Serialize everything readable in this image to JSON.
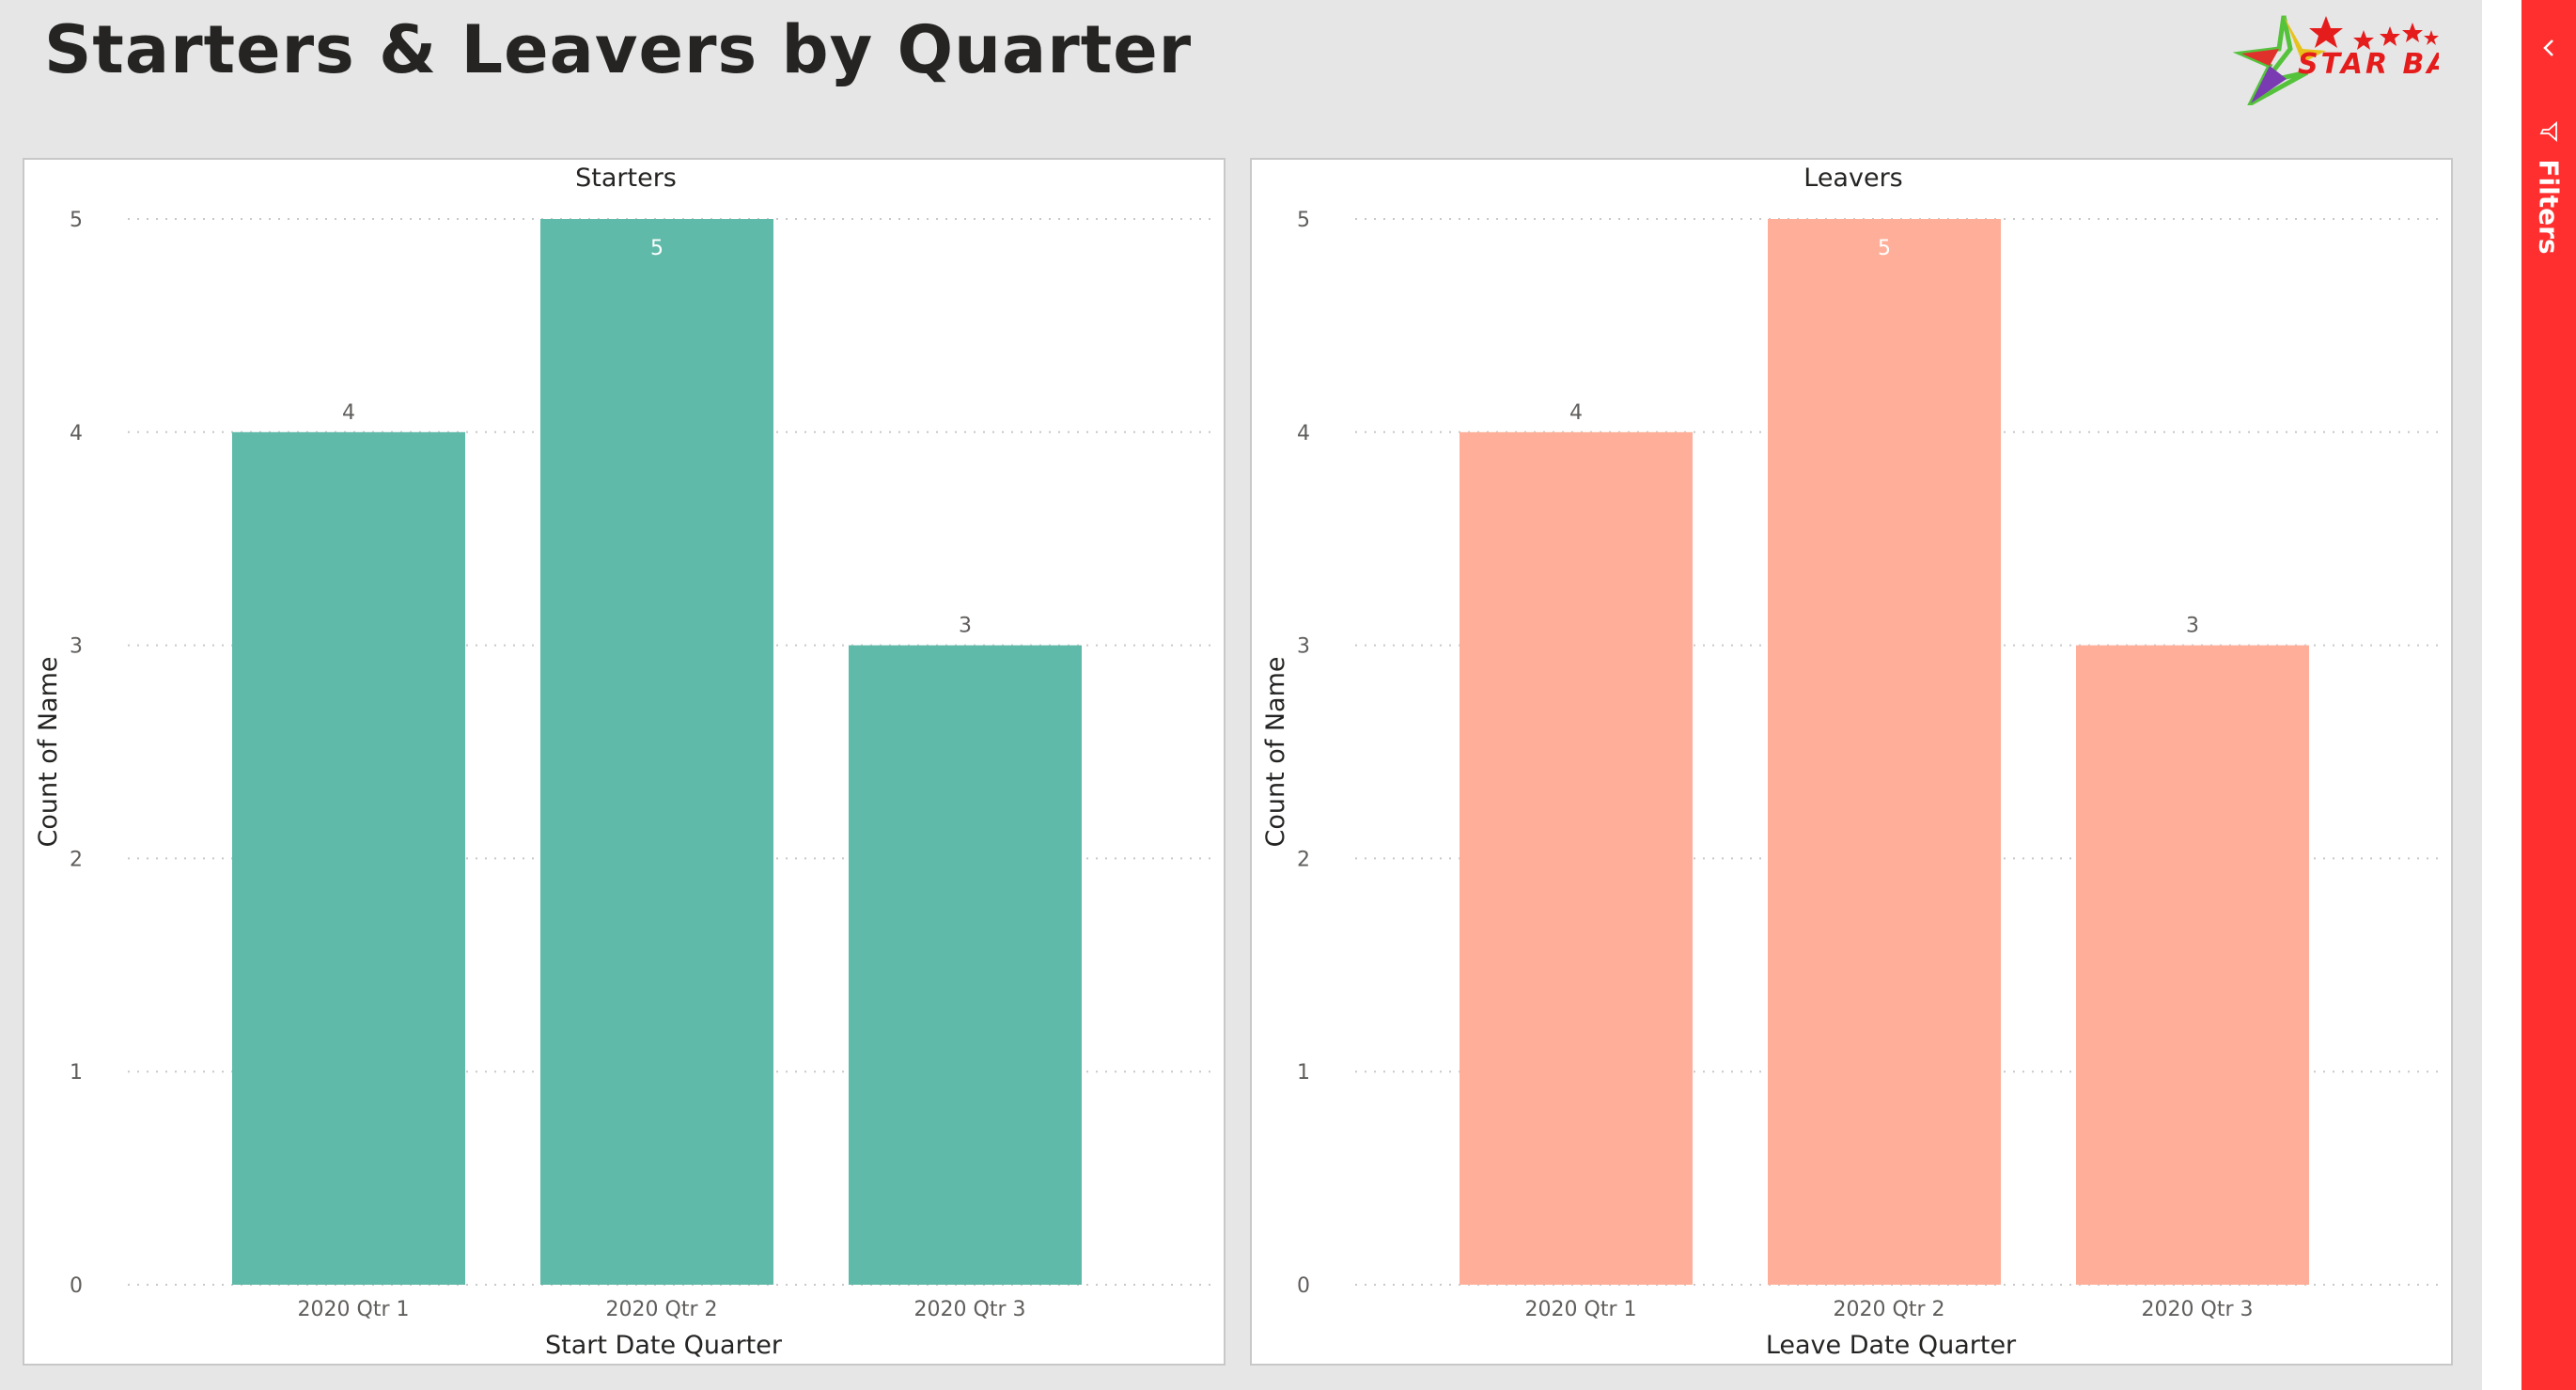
{
  "page": {
    "title": "Starters & Leavers by Quarter",
    "logo_text": "STAR BASE",
    "filters_label": "Filters"
  },
  "colors": {
    "starters": "#5fbaa9",
    "leavers": "#ffaf99",
    "filters_pane": "#ff2f2f"
  },
  "chart_data": [
    {
      "type": "bar",
      "title": "Starters",
      "categories": [
        "2020 Qtr 1",
        "2020 Qtr 2",
        "2020 Qtr 3"
      ],
      "values": [
        4,
        5,
        3
      ],
      "xlabel": "Start Date Quarter",
      "ylabel": "Count of Name",
      "ylim": [
        0,
        5
      ],
      "yticks": [
        0,
        1,
        2,
        3,
        4,
        5
      ],
      "grid": true,
      "color": "#5fbaa9"
    },
    {
      "type": "bar",
      "title": "Leavers",
      "categories": [
        "2020 Qtr 1",
        "2020 Qtr 2",
        "2020 Qtr 3"
      ],
      "values": [
        4,
        5,
        3
      ],
      "xlabel": "Leave Date Quarter",
      "ylabel": "Count of Name",
      "ylim": [
        0,
        5
      ],
      "yticks": [
        0,
        1,
        2,
        3,
        4,
        5
      ],
      "grid": true,
      "color": "#ffaf99"
    }
  ]
}
